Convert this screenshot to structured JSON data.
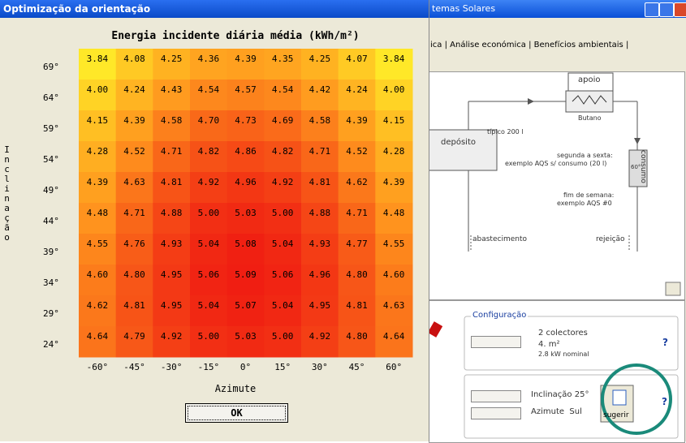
{
  "dialog": {
    "title": "Optimização da orientação",
    "ok_button": "OK"
  },
  "chart_data": {
    "type": "heatmap",
    "title": "Energia incidente diária média (kWh/m²)",
    "x_label": "Azimute",
    "y_label": "Inclinação",
    "x_categories": [
      "-60°",
      "-45°",
      "-30°",
      "-15°",
      "0°",
      "15°",
      "30°",
      "45°",
      "60°"
    ],
    "y_categories": [
      "69°",
      "64°",
      "59°",
      "54°",
      "49°",
      "44°",
      "39°",
      "34°",
      "29°",
      "24°"
    ],
    "values": [
      [
        3.84,
        4.08,
        4.25,
        4.36,
        4.39,
        4.35,
        4.25,
        4.07,
        3.84
      ],
      [
        4.0,
        4.24,
        4.43,
        4.54,
        4.57,
        4.54,
        4.42,
        4.24,
        4.0
      ],
      [
        4.15,
        4.39,
        4.58,
        4.7,
        4.73,
        4.69,
        4.58,
        4.39,
        4.15
      ],
      [
        4.28,
        4.52,
        4.71,
        4.82,
        4.86,
        4.82,
        4.71,
        4.52,
        4.28
      ],
      [
        4.39,
        4.63,
        4.81,
        4.92,
        4.96,
        4.92,
        4.81,
        4.62,
        4.39
      ],
      [
        4.48,
        4.71,
        4.88,
        5.0,
        5.03,
        5.0,
        4.88,
        4.71,
        4.48
      ],
      [
        4.55,
        4.76,
        4.93,
        5.04,
        5.08,
        5.04,
        4.93,
        4.77,
        4.55
      ],
      [
        4.6,
        4.8,
        4.95,
        5.06,
        5.09,
        5.06,
        4.96,
        4.8,
        4.6
      ],
      [
        4.62,
        4.81,
        4.95,
        5.04,
        5.07,
        5.04,
        4.95,
        4.81,
        4.63
      ],
      [
        4.64,
        4.79,
        4.92,
        5.0,
        5.03,
        5.0,
        4.92,
        4.8,
        4.64
      ]
    ],
    "value_labels": [
      [
        "3.84",
        "4.08",
        "4.25",
        "4.36",
        "4.39",
        "4.35",
        "4.25",
        "4.07",
        "3.84"
      ],
      [
        "4.00",
        "4.24",
        "4.43",
        "4.54",
        "4.57",
        "4.54",
        "4.42",
        "4.24",
        "4.00"
      ],
      [
        "4.15",
        "4.39",
        "4.58",
        "4.70",
        "4.73",
        "4.69",
        "4.58",
        "4.39",
        "4.15"
      ],
      [
        "4.28",
        "4.52",
        "4.71",
        "4.82",
        "4.86",
        "4.82",
        "4.71",
        "4.52",
        "4.28"
      ],
      [
        "4.39",
        "4.63",
        "4.81",
        "4.92",
        "4.96",
        "4.92",
        "4.81",
        "4.62",
        "4.39"
      ],
      [
        "4.48",
        "4.71",
        "4.88",
        "5.00",
        "5.03",
        "5.00",
        "4.88",
        "4.71",
        "4.48"
      ],
      [
        "4.55",
        "4.76",
        "4.93",
        "5.04",
        "5.08",
        "5.04",
        "4.93",
        "4.77",
        "4.55"
      ],
      [
        "4.60",
        "4.80",
        "4.95",
        "5.06",
        "5.09",
        "5.06",
        "4.96",
        "4.80",
        "4.60"
      ],
      [
        "4.62",
        "4.81",
        "4.95",
        "5.04",
        "5.07",
        "5.04",
        "4.95",
        "4.81",
        "4.63"
      ],
      [
        "4.64",
        "4.79",
        "4.92",
        "5.00",
        "5.03",
        "5.00",
        "4.92",
        "4.80",
        "4.64"
      ]
    ]
  },
  "background_window": {
    "title": "temas Solares",
    "tabs": [
      "ica",
      "Análise económica",
      "Benefícios ambientais"
    ],
    "diagram": {
      "apoio": "apoio",
      "butano": "Butano",
      "typical": "típico 200 l",
      "deposito": "depósito",
      "weekday": "segunda a sexta:",
      "weekday_profile": "exemplo AQS s/ consumo (20 l)",
      "consumo": "consumo",
      "temperature": "60°",
      "weekend": "fim de semana:",
      "weekend_profile": "exemplo AQS #0",
      "abastecimento": "abastecimento",
      "rejeicao": "rejeição"
    },
    "configuration": {
      "title": "Configuração",
      "collectors": "2 colectores",
      "area": "4. m²",
      "power": "2.8 kW nominal",
      "help": "?",
      "inclination_label": "Inclinação",
      "inclination_value": "25°",
      "azimuth_label": "Azimute",
      "azimuth_value": "Sul",
      "suggest_button": "sugerir",
      "help2": "?"
    }
  }
}
